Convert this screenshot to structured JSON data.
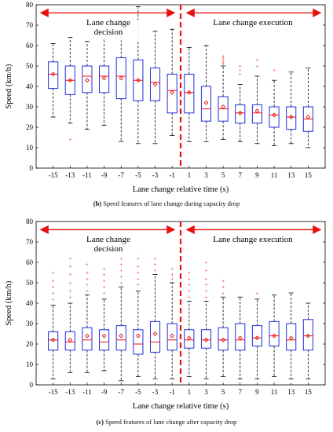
{
  "chart_data": [
    {
      "type": "box",
      "caption_letter": "(b)",
      "caption_text": " Speed features of lane change during capacity drop",
      "xlabel": "Lane change relative time (s)",
      "ylabel": "Speed (km/h)",
      "categories": [
        "-15",
        "-13",
        "-11",
        "-9",
        "-7",
        "-5",
        "-3",
        "-1",
        "1",
        "3",
        "5",
        "7",
        "9",
        "11",
        "13",
        "15"
      ],
      "ylim": [
        0,
        80
      ],
      "yticks": [
        0,
        10,
        20,
        30,
        40,
        50,
        60,
        70,
        80
      ],
      "region_labels": {
        "decision": "Lane change decision",
        "execution": "Lane change execution"
      },
      "boxes": [
        {
          "wlo": 25,
          "q1": 39,
          "med": 46,
          "q3": 52,
          "whi": 61,
          "mean": 46,
          "outliers": []
        },
        {
          "wlo": 22,
          "q1": 36,
          "med": 43,
          "q3": 50,
          "whi": 64,
          "mean": 43,
          "outliers": [
            14
          ]
        },
        {
          "wlo": 19,
          "q1": 37,
          "med": 45,
          "q3": 50,
          "whi": 62,
          "mean": 43,
          "outliers": []
        },
        {
          "wlo": 21,
          "q1": 37,
          "med": 45,
          "q3": 50,
          "whi": 63,
          "mean": 44,
          "outliers": []
        },
        {
          "wlo": 13,
          "q1": 34,
          "med": 45,
          "q3": 54,
          "whi": 72,
          "mean": 44,
          "outliers": []
        },
        {
          "wlo": 12,
          "q1": 33,
          "med": 43,
          "q3": 53,
          "whi": 79,
          "mean": 43,
          "outliers": []
        },
        {
          "wlo": 12,
          "q1": 33,
          "med": 42,
          "q3": 49,
          "whi": 67,
          "mean": 41,
          "outliers": []
        },
        {
          "wlo": 16,
          "q1": 27,
          "med": 38,
          "q3": 46,
          "whi": 68,
          "mean": 37,
          "outliers": []
        },
        {
          "wlo": 13,
          "q1": 27,
          "med": 37,
          "q3": 46,
          "whi": 59,
          "mean": 37,
          "outliers": []
        },
        {
          "wlo": 13,
          "q1": 23,
          "med": 29,
          "q3": 40,
          "whi": 60,
          "mean": 32,
          "outliers": []
        },
        {
          "wlo": 14,
          "q1": 23,
          "med": 29,
          "q3": 35,
          "whi": 50,
          "mean": 30,
          "outliers": [
            51,
            52,
            53,
            54,
            55
          ]
        },
        {
          "wlo": 13,
          "q1": 22,
          "med": 27,
          "q3": 31,
          "whi": 41,
          "mean": 27,
          "outliers": [
            46,
            48,
            50
          ]
        },
        {
          "wlo": 12,
          "q1": 22,
          "med": 27,
          "q3": 31,
          "whi": 45,
          "mean": 28,
          "outliers": [
            50,
            53
          ]
        },
        {
          "wlo": 11,
          "q1": 20,
          "med": 26,
          "q3": 30,
          "whi": 43,
          "mean": 26,
          "outliers": [
            48
          ]
        },
        {
          "wlo": 12,
          "q1": 19,
          "med": 25,
          "q3": 30,
          "whi": 47,
          "mean": 25,
          "outliers": []
        },
        {
          "wlo": 10,
          "q1": 18,
          "med": 24,
          "q3": 30,
          "whi": 49,
          "mean": 25,
          "outliers": []
        }
      ]
    },
    {
      "type": "box",
      "caption_letter": "(c)",
      "caption_text": " Speed features of lane change after capacity drop",
      "xlabel": "Lane change relative time (s)",
      "ylabel": "Speed (km/h)",
      "categories": [
        "-15",
        "-13",
        "-11",
        "-9",
        "-7",
        "-5",
        "-3",
        "-1",
        "1",
        "3",
        "5",
        "7",
        "9",
        "11",
        "13",
        "15"
      ],
      "ylim": [
        0,
        80
      ],
      "yticks": [
        0,
        10,
        20,
        30,
        40,
        50,
        60,
        70,
        80
      ],
      "region_labels": {
        "decision": "Lane change decision",
        "execution": "Lane change execution"
      },
      "boxes": [
        {
          "wlo": 3,
          "q1": 17,
          "med": 22,
          "q3": 26,
          "whi": 39,
          "mean": 22,
          "outliers": [
            42,
            45,
            48,
            51,
            55
          ]
        },
        {
          "wlo": 6,
          "q1": 17,
          "med": 21,
          "q3": 26,
          "whi": 40,
          "mean": 22,
          "outliers": [
            43,
            46,
            50,
            54,
            58,
            62
          ]
        },
        {
          "wlo": 6,
          "q1": 17,
          "med": 22,
          "q3": 28,
          "whi": 44,
          "mean": 24,
          "outliers": [
            46,
            49,
            52,
            55,
            59
          ]
        },
        {
          "wlo": 7,
          "q1": 17,
          "med": 21,
          "q3": 27,
          "whi": 42,
          "mean": 24,
          "outliers": [
            45,
            48,
            51,
            54,
            57
          ]
        },
        {
          "wlo": 2,
          "q1": 17,
          "med": 22,
          "q3": 29,
          "whi": 48,
          "mean": 24,
          "outliers": [
            50,
            53,
            56,
            59,
            62
          ]
        },
        {
          "wlo": 4,
          "q1": 15,
          "med": 20,
          "q3": 27,
          "whi": 46,
          "mean": 24,
          "outliers": [
            49,
            52,
            55,
            58,
            62,
            67
          ]
        },
        {
          "wlo": 3,
          "q1": 16,
          "med": 21,
          "q3": 31,
          "whi": 54,
          "mean": 25,
          "outliers": [
            56,
            59,
            62
          ]
        },
        {
          "wlo": 3,
          "q1": 17,
          "med": 22,
          "q3": 30,
          "whi": 50,
          "mean": 24,
          "outliers": [
            52,
            54,
            57
          ]
        },
        {
          "wlo": 4,
          "q1": 18,
          "med": 22,
          "q3": 27,
          "whi": 41,
          "mean": 23,
          "outliers": [
            43,
            46,
            49,
            52,
            55
          ]
        },
        {
          "wlo": 3,
          "q1": 18,
          "med": 22,
          "q3": 27,
          "whi": 41,
          "mean": 22,
          "outliers": [
            43,
            46,
            49,
            52,
            56,
            60
          ]
        },
        {
          "wlo": 4,
          "q1": 17,
          "med": 22,
          "q3": 28,
          "whi": 43,
          "mean": 22,
          "outliers": [
            45,
            48,
            51
          ]
        },
        {
          "wlo": 3,
          "q1": 17,
          "med": 22,
          "q3": 30,
          "whi": 43,
          "mean": 23,
          "outliers": []
        },
        {
          "wlo": 3,
          "q1": 19,
          "med": 23,
          "q3": 29,
          "whi": 42,
          "mean": 23,
          "outliers": [
            45
          ]
        },
        {
          "wlo": 4,
          "q1": 19,
          "med": 24,
          "q3": 31,
          "whi": 44,
          "mean": 24,
          "outliers": []
        },
        {
          "wlo": 3,
          "q1": 17,
          "med": 22,
          "q3": 30,
          "whi": 45,
          "mean": 23,
          "outliers": []
        },
        {
          "wlo": 3,
          "q1": 17,
          "med": 24,
          "q3": 32,
          "whi": 40,
          "mean": 24,
          "outliers": []
        }
      ]
    }
  ],
  "colors": {
    "box": "#1f2fe0",
    "median": "#e81010",
    "outlier": "#e81010",
    "divider": "#e81010",
    "arrow": "#e81010",
    "whisker": "#000000"
  }
}
